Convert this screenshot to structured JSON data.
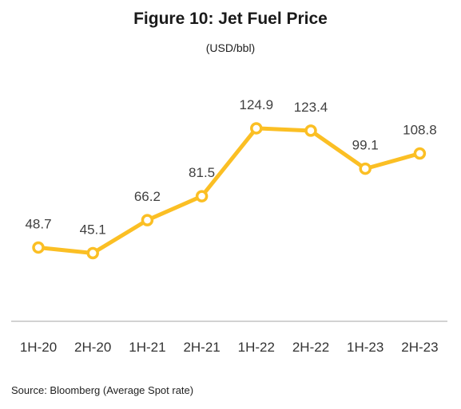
{
  "header": {
    "title": "Figure 10: Jet Fuel Price",
    "subtitle": "(USD/bbl)"
  },
  "footer": {
    "source": "Source: Bloomberg  (Average Spot rate)"
  },
  "colors": {
    "line": "#FBBF24",
    "marker_fill": "#ffffff",
    "axis": "#a6a6a6"
  },
  "chart_data": {
    "type": "line",
    "title": "Figure 10: Jet Fuel Price",
    "ylabel": "(USD/bbl)",
    "xlabel": "",
    "categories": [
      "1H-20",
      "2H-20",
      "1H-21",
      "2H-21",
      "1H-22",
      "2H-22",
      "1H-23",
      "2H-23"
    ],
    "series": [
      {
        "values": [
          48.7,
          45.1,
          66.2,
          81.5,
          124.9,
          123.4,
          99.1,
          108.8
        ],
        "labels": [
          "48.7",
          "45.1",
          "66.2",
          "81.5",
          "124.9",
          "123.4",
          "99.1",
          "108.8"
        ]
      }
    ],
    "ylim": [
      0,
      140
    ],
    "grid": false,
    "legend": "none",
    "data_labels": true
  }
}
